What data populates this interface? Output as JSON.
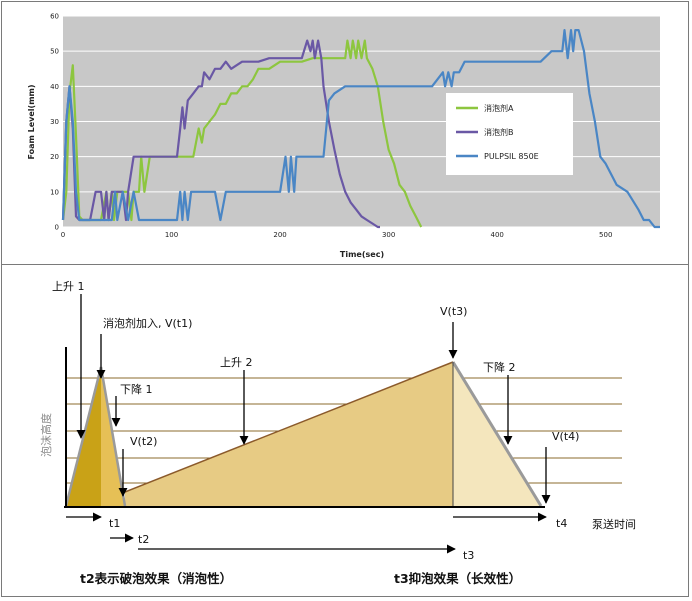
{
  "chart_data": [
    {
      "type": "line",
      "xlabel": "Time(sec)",
      "ylabel": "Foam Level(mm)",
      "xlim": [
        0,
        550
      ],
      "ylim": [
        0,
        60
      ],
      "xticks": [
        "0",
        "100",
        "200",
        "300",
        "400",
        "500"
      ],
      "yticks": [
        "0",
        "10",
        "20",
        "30",
        "40",
        "50",
        "60"
      ],
      "grid": true,
      "legend_position": "right",
      "background": "#c8c8c8",
      "series": [
        {
          "name": "消泡剂A",
          "color": "#8dc63f",
          "x": [
            0,
            3,
            6,
            9,
            12,
            15,
            18,
            25,
            35,
            40,
            42,
            45,
            47,
            50,
            55,
            60,
            63,
            65,
            67,
            70,
            72,
            75,
            80,
            85,
            88,
            90,
            93,
            95,
            100,
            110,
            120,
            125,
            128,
            130,
            135,
            140,
            145,
            150,
            155,
            160,
            165,
            170,
            175,
            180,
            185,
            190,
            200,
            210,
            220,
            230,
            240,
            245,
            248,
            250,
            255,
            260,
            262,
            265,
            267,
            270,
            272,
            275,
            278,
            280,
            285,
            290,
            295,
            300,
            305,
            310,
            315,
            320,
            325,
            330
          ],
          "y": [
            2,
            10,
            38,
            46,
            26,
            3,
            2,
            2,
            2,
            10,
            2,
            10,
            2,
            10,
            10,
            10,
            2,
            10,
            10,
            10,
            20,
            10,
            20,
            20,
            20,
            20,
            20,
            20,
            20,
            20,
            20,
            28,
            24,
            28,
            30,
            32,
            35,
            35,
            38,
            38,
            40,
            40,
            42,
            45,
            45,
            45,
            47,
            47,
            47,
            48,
            48,
            48,
            48,
            48,
            48,
            48,
            53,
            48,
            53,
            48,
            53,
            48,
            53,
            48,
            45,
            40,
            30,
            22,
            18,
            12,
            10,
            6,
            3,
            0
          ]
        },
        {
          "name": "消泡剂B",
          "color": "#6a58a5",
          "x": [
            0,
            3,
            6,
            9,
            12,
            15,
            18,
            25,
            30,
            35,
            38,
            40,
            42,
            45,
            50,
            55,
            58,
            60,
            62,
            65,
            68,
            70,
            75,
            80,
            85,
            90,
            95,
            100,
            105,
            108,
            110,
            112,
            115,
            120,
            125,
            128,
            130,
            135,
            140,
            145,
            150,
            155,
            160,
            165,
            170,
            180,
            190,
            200,
            210,
            220,
            225,
            228,
            230,
            232,
            235,
            238,
            240,
            245,
            250,
            255,
            260,
            265,
            270,
            275,
            280,
            285,
            290,
            292
          ],
          "y": [
            2,
            30,
            40,
            28,
            3,
            2,
            2,
            2,
            10,
            10,
            2,
            10,
            2,
            10,
            10,
            10,
            2,
            10,
            14,
            20,
            20,
            20,
            20,
            20,
            20,
            20,
            20,
            20,
            20,
            28,
            34,
            28,
            36,
            38,
            40,
            40,
            44,
            42,
            45,
            45,
            47,
            45,
            46,
            47,
            47,
            47,
            48,
            48,
            48,
            48,
            53,
            50,
            53,
            48,
            53,
            48,
            40,
            30,
            22,
            15,
            10,
            7,
            5,
            3,
            2,
            1,
            0,
            0
          ]
        },
        {
          "name": "PULPSIL 850E",
          "color": "#4a86c5",
          "x": [
            0,
            3,
            6,
            9,
            12,
            15,
            18,
            20,
            25,
            40,
            45,
            48,
            50,
            55,
            60,
            65,
            70,
            75,
            80,
            85,
            90,
            95,
            100,
            105,
            108,
            110,
            112,
            115,
            118,
            120,
            140,
            145,
            150,
            180,
            200,
            205,
            208,
            210,
            213,
            215,
            220,
            240,
            245,
            250,
            260,
            270,
            280,
            300,
            320,
            340,
            350,
            352,
            355,
            358,
            360,
            365,
            370,
            380,
            400,
            420,
            440,
            450,
            460,
            462,
            465,
            468,
            470,
            472,
            475,
            480,
            485,
            490,
            495,
            500,
            510,
            520,
            530,
            535,
            540,
            545,
            550
          ],
          "y": [
            2,
            30,
            40,
            30,
            10,
            2,
            2,
            2,
            2,
            2,
            2,
            10,
            2,
            10,
            2,
            10,
            2,
            2,
            2,
            2,
            2,
            2,
            2,
            2,
            10,
            2,
            10,
            2,
            10,
            10,
            10,
            2,
            10,
            10,
            10,
            20,
            10,
            20,
            10,
            20,
            20,
            20,
            36,
            38,
            40,
            40,
            40,
            40,
            40,
            40,
            44,
            40,
            44,
            40,
            44,
            44,
            47,
            47,
            47,
            47,
            47,
            50,
            50,
            56,
            48,
            56,
            50,
            56,
            56,
            50,
            38,
            30,
            20,
            18,
            12,
            10,
            5,
            2,
            2,
            0,
            0
          ]
        }
      ]
    },
    {
      "type": "area",
      "ylabel": "泡沫高度",
      "xlabel": "泵送时间",
      "grid": true,
      "regions": [
        {
          "name": "t1",
          "color": "#c9a217",
          "x": [
            0,
            1.5,
            2.5
          ],
          "y": [
            0,
            1,
            0
          ]
        },
        {
          "name": "t2",
          "color": "#e0c77a",
          "x": [
            2.5,
            3.6
          ],
          "y": [
            0,
            0
          ]
        },
        {
          "name": "t3",
          "color": "#e7cb84",
          "x": [
            3.6,
            26.5
          ],
          "y": [
            0,
            1
          ]
        },
        {
          "name": "t4",
          "color": "#f2e2b8",
          "x": [
            26.5,
            30.5
          ],
          "y": [
            1,
            0
          ]
        }
      ],
      "annotations": {
        "rise1": "上升 1",
        "add_agent": "消泡剂加入, V(t1)",
        "fall1": "下降 1",
        "vt2": "V(t2)",
        "rise2": "上升 2",
        "vt3": "V(t3)",
        "fall2": "下降 2",
        "vt4": "V(t4)",
        "t1": "t1",
        "t2": "t2",
        "t3": "t3",
        "t4": "t4",
        "caption_left": "t2表示破泡效果（消泡性）",
        "caption_right": "t3抑泡效果（长效性）"
      }
    }
  ]
}
